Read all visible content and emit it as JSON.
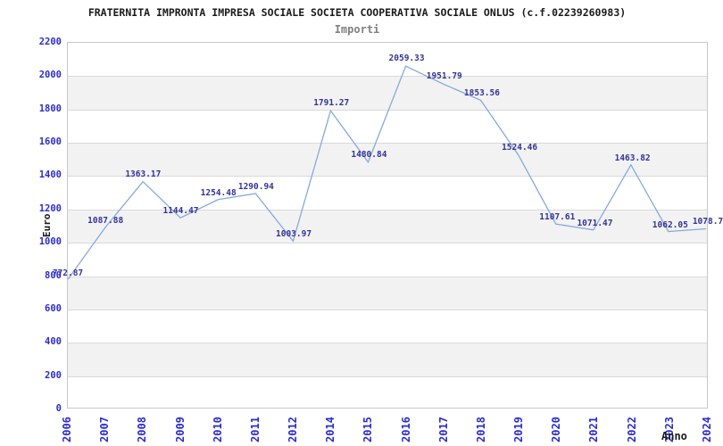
{
  "header": {
    "title": "FRATERNITA IMPRONTA IMPRESA SOCIALE SOCIETA COOPERATIVA SOCIALE ONLUS (c.f.02239260983)",
    "subtitle": "Importi"
  },
  "chart_data": {
    "type": "line",
    "title": "FRATERNITA IMPRONTA IMPRESA SOCIALE SOCIETA COOPERATIVA SOCIALE ONLUS (c.f.02239260983)",
    "subtitle": "Importi",
    "xlabel": "Anno",
    "ylabel": "Euro",
    "ylim": [
      0,
      2200
    ],
    "ytick_step": 200,
    "ytick_labels": [
      "0",
      "200",
      "400",
      "600",
      "800",
      "1000",
      "1200",
      "1400",
      "1600",
      "1800",
      "2000",
      "2200"
    ],
    "categories": [
      "2006",
      "2007",
      "2008",
      "2009",
      "2010",
      "2011",
      "2012",
      "2014",
      "2015",
      "2016",
      "2017",
      "2018",
      "2019",
      "2020",
      "2021",
      "2022",
      "2023",
      "2024"
    ],
    "values": [
      772.87,
      1087.88,
      1363.17,
      1144.47,
      1254.48,
      1290.94,
      1003.97,
      1791.27,
      1480.84,
      2059.33,
      1951.79,
      1853.56,
      1524.46,
      1107.61,
      1071.47,
      1463.82,
      1062.05,
      1078.7
    ],
    "point_labels": [
      "772.87",
      "1087.88",
      "1363.17",
      "1144.47",
      "1254.48",
      "1290.94",
      "1003.97",
      "1791.27",
      "1480.84",
      "2059.33",
      "1951.79",
      "1853.56",
      "1524.46",
      "1107.61",
      "1071.47",
      "1463.82",
      "1062.05",
      "1078.7"
    ],
    "grid": "horizontal-bands-alternating",
    "legend_position": "none",
    "colors": {
      "line": "#85aade",
      "band": "#f2f2f2",
      "gridline": "#d9d9d9",
      "plot_border": "#c8c8c8",
      "tick_text": "#2b2bd2",
      "point_label_text": "#333399",
      "title_text": "#1a1a1a",
      "subtitle_text": "#808080"
    }
  }
}
